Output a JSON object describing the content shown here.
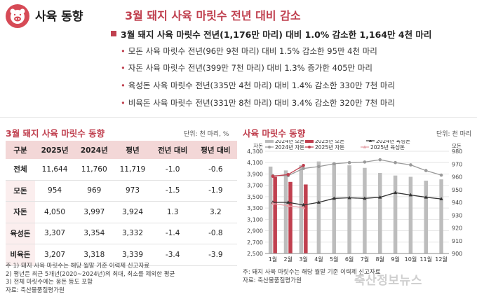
{
  "header": {
    "brand": "사육 동향",
    "headline": "3월 돼지 사육 마릿수 전년 대비 감소",
    "lead": "3월 돼지 사육 마릿수 전년(1,176만 마리) 대비 1.0% 감소한 1,164만 4천 마리",
    "bullets": [
      "모돈 사육 마릿수 전년(96만 9천 마리) 대비 1.5% 감소한 95만 4천 마리",
      "자돈 사육 마릿수 전년(399만 7천 마리) 대비 1.3% 증가한 405만 마리",
      "육성돈 사육 마릿수 전년(335만 4천 마리) 대비 1.4% 감소한 330만 7천 마리",
      "비육돈 사육 마릿수 전년(331만 8천 마리) 대비 3.4% 감소한 320만 7천 마리"
    ]
  },
  "table": {
    "title": "3월 돼지 사육 마릿수 동향",
    "unit": "단위: 천 마리, %",
    "headers": [
      "구분",
      "2025년",
      "2024년",
      "평년",
      "전년 대비",
      "평년 대비"
    ],
    "rows": [
      [
        "전체",
        "11,644",
        "11,760",
        "11,719",
        "-1.0",
        "-0.6"
      ],
      [
        "모돈",
        "954",
        "969",
        "973",
        "-1.5",
        "-1.9"
      ],
      [
        "자돈",
        "4,050",
        "3,997",
        "3,924",
        "1.3",
        "3.2"
      ],
      [
        "육성돈",
        "3,307",
        "3,354",
        "3,332",
        "-1.4",
        "-0.8"
      ],
      [
        "비육돈",
        "3,207",
        "3,318",
        "3,339",
        "-3.4",
        "-3.9"
      ]
    ],
    "notes": [
      "주 1) 돼지 사육 마릿수는 해당 월말 기준 이력제 신고자료",
      "   2) 평년은 최근 5개년(2020~2024년)의 최대, 최소를 제외한 평균",
      "   3) 전체 마릿수에는 웅돈 등도 포함",
      "자료: 축산물품질평가원"
    ]
  },
  "chart_data": {
    "title": "사육 마릿수 동향",
    "unit": "단위: 천 마리",
    "type": "bar",
    "categories": [
      "1월",
      "2월",
      "3월",
      "4월",
      "5월",
      "6월",
      "7월",
      "8월",
      "9월",
      "10월",
      "11월",
      "12월"
    ],
    "left_axis": {
      "label": "자돈",
      "min": 2500,
      "max": 4300,
      "ticks": [
        2500,
        2700,
        2900,
        3100,
        3300,
        3500,
        3700,
        3900,
        4100,
        4300
      ]
    },
    "right_axis": {
      "label": "모돈",
      "min": 900,
      "max": 980,
      "ticks": [
        900,
        910,
        920,
        930,
        940,
        950,
        960,
        970,
        980
      ]
    },
    "series": [
      {
        "name": "2024년 모돈",
        "kind": "bar",
        "axis": "right",
        "color": "#bdbdbd",
        "values": [
          968,
          965,
          969,
          972,
          971,
          969,
          967,
          963,
          961,
          960,
          957,
          958
        ]
      },
      {
        "name": "2025년 모돈",
        "kind": "bar",
        "axis": "right",
        "color": "#c0404f",
        "values": [
          960,
          956,
          954,
          null,
          null,
          null,
          null,
          null,
          null,
          null,
          null,
          null
        ]
      },
      {
        "name": "2024년 자돈",
        "kind": "line",
        "axis": "left",
        "color": "#9a9a9a",
        "marker": "circle",
        "values": [
          3870,
          3870,
          3997,
          4030,
          4080,
          4100,
          4110,
          4150,
          4100,
          4060,
          3960,
          3880
        ]
      },
      {
        "name": "2025년 자돈",
        "kind": "line",
        "axis": "left",
        "color": "#c0404f",
        "marker": "circle",
        "values": [
          3860,
          3890,
          4050,
          null,
          null,
          null,
          null,
          null,
          null,
          null,
          null,
          null
        ]
      },
      {
        "name": "2024년 육성돈",
        "kind": "line",
        "axis": "left",
        "color": "#333333",
        "marker": "triangle",
        "values": [
          3400,
          3400,
          3354,
          3400,
          3470,
          3480,
          3470,
          3490,
          3570,
          3530,
          3490,
          3460
        ]
      },
      {
        "name": "2025년 육성돈",
        "kind": "line",
        "axis": "left",
        "color": "#e6a4ab",
        "marker": "triangle",
        "values": [
          3380,
          3340,
          3307,
          null,
          null,
          null,
          null,
          null,
          null,
          null,
          null,
          null
        ]
      }
    ],
    "note": "주: 돼지 사육 마릿수는 해당 월말 기준 이력제 신고자료",
    "source": "자료: 축산물품질평가원"
  },
  "watermark": "축산정보뉴스",
  "colors": {
    "accent": "#c0404f",
    "header_fill": "#f3d7d7",
    "grey_bar": "#bdbdbd"
  }
}
